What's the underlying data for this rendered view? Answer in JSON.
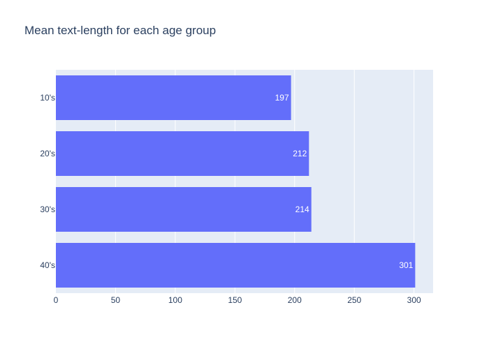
{
  "chart_data": {
    "type": "bar",
    "orientation": "horizontal",
    "title": "Mean text-length for each age group",
    "xlabel": "",
    "ylabel": "",
    "categories": [
      "10's",
      "20's",
      "30's",
      "40's"
    ],
    "values": [
      197,
      212,
      214,
      301
    ],
    "data_labels": [
      "197",
      "212",
      "214",
      "301"
    ],
    "xlim": [
      0,
      316
    ],
    "x_ticks": [
      0,
      50,
      100,
      150,
      200,
      250,
      300
    ],
    "x_tick_labels": [
      "0",
      "50",
      "100",
      "150",
      "200",
      "250",
      "300"
    ],
    "grid": true,
    "legend": "none"
  },
  "colors": {
    "bar": "#636efa",
    "plot_bg": "#e5ecf6",
    "grid": "#ffffff",
    "text": "#2a3f5f",
    "bar_label": "#ffffff"
  }
}
